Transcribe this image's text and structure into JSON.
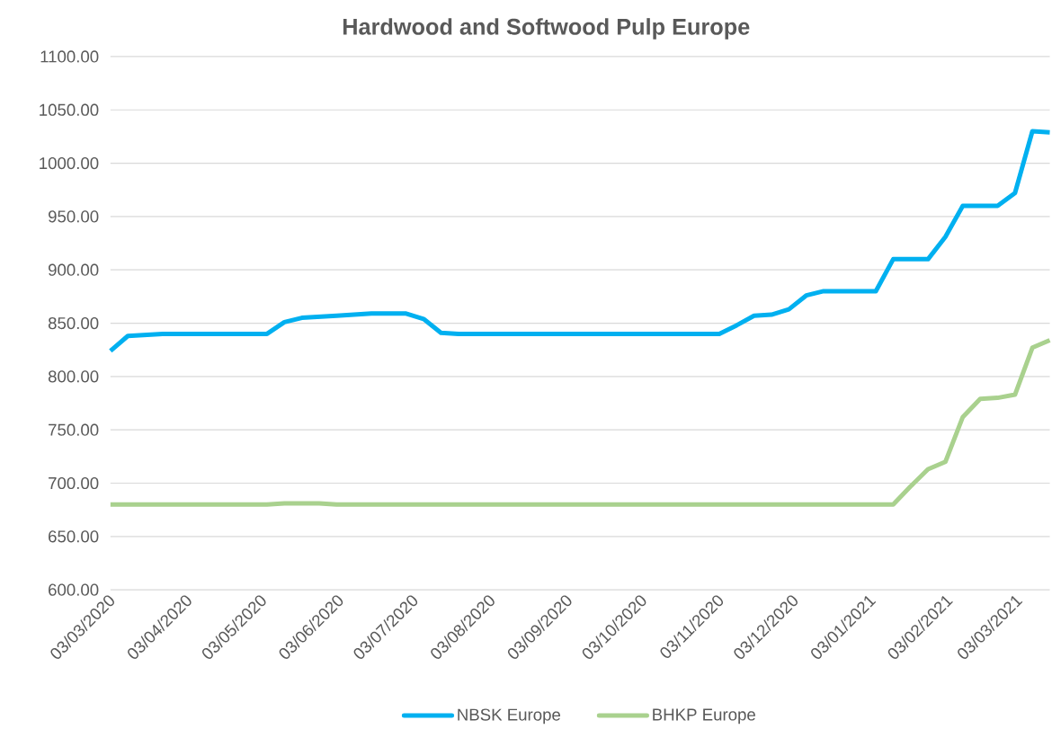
{
  "chart_data": {
    "type": "line",
    "title": "Hardwood and Softwood Pulp Europe",
    "x": [
      "2020-03-03",
      "2020-03-10",
      "2020-03-17",
      "2020-03-24",
      "2020-03-31",
      "2020-04-07",
      "2020-04-14",
      "2020-04-21",
      "2020-04-28",
      "2020-05-05",
      "2020-05-12",
      "2020-05-19",
      "2020-05-26",
      "2020-06-02",
      "2020-06-09",
      "2020-06-16",
      "2020-06-23",
      "2020-06-30",
      "2020-07-07",
      "2020-07-14",
      "2020-07-21",
      "2020-07-28",
      "2020-08-04",
      "2020-08-11",
      "2020-08-18",
      "2020-08-25",
      "2020-09-01",
      "2020-09-08",
      "2020-09-15",
      "2020-09-22",
      "2020-09-29",
      "2020-10-06",
      "2020-10-13",
      "2020-10-20",
      "2020-10-27",
      "2020-11-03",
      "2020-11-10",
      "2020-11-17",
      "2020-11-24",
      "2020-12-01",
      "2020-12-08",
      "2020-12-15",
      "2020-12-22",
      "2020-12-29",
      "2021-01-05",
      "2021-01-12",
      "2021-01-19",
      "2021-01-26",
      "2021-02-02",
      "2021-02-09",
      "2021-02-16",
      "2021-02-23",
      "2021-03-02",
      "2021-03-09",
      "2021-03-16"
    ],
    "series": [
      {
        "name": "NBSK Europe",
        "color": "#00b0f0",
        "values": [
          824,
          838,
          839,
          840,
          840,
          840,
          840,
          840,
          840,
          840,
          851,
          855,
          856,
          857,
          858,
          859,
          859,
          859,
          854,
          841,
          840,
          840,
          840,
          840,
          840,
          840,
          840,
          840,
          840,
          840,
          840,
          840,
          840,
          840,
          840,
          840,
          848,
          857,
          858,
          863,
          876,
          880,
          880,
          880,
          880,
          910,
          910,
          910,
          931,
          960,
          960,
          960,
          972,
          1030,
          1029
        ]
      },
      {
        "name": "BHKP Europe",
        "color": "#a9d18e",
        "values": [
          680,
          680,
          680,
          680,
          680,
          680,
          680,
          680,
          680,
          680,
          681,
          681,
          681,
          680,
          680,
          680,
          680,
          680,
          680,
          680,
          680,
          680,
          680,
          680,
          680,
          680,
          680,
          680,
          680,
          680,
          680,
          680,
          680,
          680,
          680,
          680,
          680,
          680,
          680,
          680,
          680,
          680,
          680,
          680,
          680,
          680,
          697,
          713,
          720,
          762,
          779,
          780,
          783,
          827,
          834
        ]
      }
    ],
    "xlim": [
      "2020-03-03",
      "2021-03-16"
    ],
    "xticks": [
      {
        "value": "2020-03-03",
        "label": "03/03/2020"
      },
      {
        "value": "2020-04-03",
        "label": "03/04/2020"
      },
      {
        "value": "2020-05-03",
        "label": "03/05/2020"
      },
      {
        "value": "2020-06-03",
        "label": "03/06/2020"
      },
      {
        "value": "2020-07-03",
        "label": "03/07/2020"
      },
      {
        "value": "2020-08-03",
        "label": "03/08/2020"
      },
      {
        "value": "2020-09-03",
        "label": "03/09/2020"
      },
      {
        "value": "2020-10-03",
        "label": "03/10/2020"
      },
      {
        "value": "2020-11-03",
        "label": "03/11/2020"
      },
      {
        "value": "2020-12-03",
        "label": "03/12/2020"
      },
      {
        "value": "2021-01-03",
        "label": "03/01/2021"
      },
      {
        "value": "2021-02-03",
        "label": "03/02/2021"
      },
      {
        "value": "2021-03-03",
        "label": "03/03/2021"
      }
    ],
    "ylim": [
      600,
      1100
    ],
    "yticks": [
      {
        "value": 600,
        "label": "600.00"
      },
      {
        "value": 650,
        "label": "650.00"
      },
      {
        "value": 700,
        "label": "700.00"
      },
      {
        "value": 750,
        "label": "750.00"
      },
      {
        "value": 800,
        "label": "800.00"
      },
      {
        "value": 850,
        "label": "850.00"
      },
      {
        "value": 900,
        "label": "900.00"
      },
      {
        "value": 950,
        "label": "950.00"
      },
      {
        "value": 1000,
        "label": "1000.00"
      },
      {
        "value": 1050,
        "label": "1050.00"
      },
      {
        "value": 1100,
        "label": "1100.00"
      }
    ],
    "grid": "y",
    "legend": "bottom",
    "marker": "none",
    "line_style": "solid"
  }
}
